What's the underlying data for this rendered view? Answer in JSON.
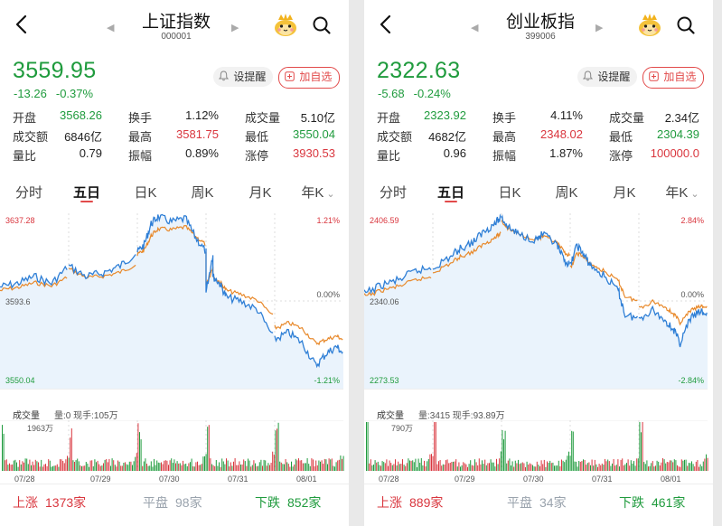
{
  "panels": [
    {
      "title": "上证指数",
      "code": "000001",
      "price": "3559.95",
      "change": "-13.26",
      "change_pct": "-0.37%",
      "alert_label": "设提醒",
      "add_label": "加自选",
      "stats": [
        [
          {
            "label": "开盘",
            "value": "3568.26",
            "color": "green"
          },
          {
            "label": "换手",
            "value": "1.12%",
            "color": "black"
          },
          {
            "label": "成交量",
            "value": "5.10亿",
            "color": "black"
          }
        ],
        [
          {
            "label": "成交额",
            "value": "6846亿",
            "color": "black"
          },
          {
            "label": "最高",
            "value": "3581.75",
            "color": "red"
          },
          {
            "label": "最低",
            "value": "3550.04",
            "color": "green"
          }
        ],
        [
          {
            "label": "量比",
            "value": "0.79",
            "color": "black"
          },
          {
            "label": "振幅",
            "value": "0.89%",
            "color": "black"
          },
          {
            "label": "涨停",
            "value": "3930.53",
            "color": "red"
          }
        ]
      ],
      "tabs": [
        "分时",
        "五日",
        "日K",
        "周K",
        "月K",
        "年K"
      ],
      "active_tab": 1,
      "chart": {
        "y_high": "3637.28",
        "y_mid": "3593.6",
        "y_low": "3550.04",
        "pct_high": "1.21%",
        "pct_mid": "0.00%",
        "pct_low": "-1.21%"
      },
      "volume": {
        "label": "成交量",
        "stats": "量:0 现手:105万",
        "max": "1963万"
      },
      "dates": [
        "07/28",
        "07/29",
        "07/30",
        "07/31",
        "08/01"
      ],
      "breadth": {
        "up_label": "上涨",
        "up": "1373家",
        "flat_label": "平盘",
        "flat": "98家",
        "down_label": "下跌",
        "down": "852家"
      }
    },
    {
      "title": "创业板指",
      "code": "399006",
      "price": "2322.63",
      "change": "-5.68",
      "change_pct": "-0.24%",
      "alert_label": "设提醒",
      "add_label": "加自选",
      "stats": [
        [
          {
            "label": "开盘",
            "value": "2323.92",
            "color": "green"
          },
          {
            "label": "换手",
            "value": "4.11%",
            "color": "black"
          },
          {
            "label": "成交量",
            "value": "2.34亿",
            "color": "black"
          }
        ],
        [
          {
            "label": "成交额",
            "value": "4682亿",
            "color": "black"
          },
          {
            "label": "最高",
            "value": "2348.02",
            "color": "red"
          },
          {
            "label": "最低",
            "value": "2304.39",
            "color": "green"
          }
        ],
        [
          {
            "label": "量比",
            "value": "0.96",
            "color": "black"
          },
          {
            "label": "振幅",
            "value": "1.87%",
            "color": "black"
          },
          {
            "label": "涨停",
            "value": "100000.0",
            "color": "red"
          }
        ]
      ],
      "tabs": [
        "分时",
        "五日",
        "日K",
        "周K",
        "月K",
        "年K"
      ],
      "active_tab": 1,
      "chart": {
        "y_high": "2406.59",
        "y_mid": "2340.06",
        "y_low": "2273.53",
        "pct_high": "2.84%",
        "pct_mid": "0.00%",
        "pct_low": "-2.84%"
      },
      "volume": {
        "label": "成交量",
        "stats": "量:3415 现手:93.89万",
        "max": "790万"
      },
      "dates": [
        "07/28",
        "07/29",
        "07/30",
        "07/31",
        "08/01"
      ],
      "breadth": {
        "up_label": "上涨",
        "up": "889家",
        "flat_label": "平盘",
        "flat": "34家",
        "down_label": "下跌",
        "down": "461家"
      }
    }
  ],
  "colors": {
    "up": "#d9363e",
    "down": "#1f9b3d",
    "price_line": "#2f7fd6",
    "avg_line": "#e8892b",
    "grid": "#dcdcdc"
  },
  "icons": [
    "back-arrow-icon",
    "prev-triangle-icon",
    "next-triangle-icon",
    "mascot-icon",
    "search-icon",
    "bell-icon",
    "plus-box-icon",
    "chevron-down-icon"
  ]
}
